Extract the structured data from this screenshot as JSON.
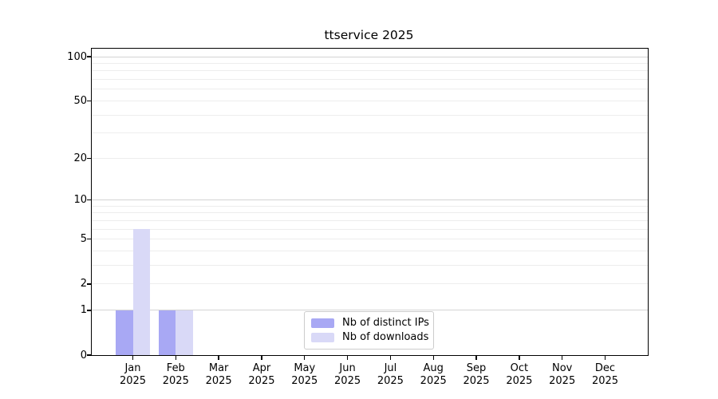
{
  "chart_data": {
    "type": "bar",
    "title": "ttservice 2025",
    "categories": [
      "Jan",
      "Feb",
      "Mar",
      "Apr",
      "May",
      "Jun",
      "Jul",
      "Aug",
      "Sep",
      "Oct",
      "Nov",
      "Dec"
    ],
    "x_year_label": "2025",
    "series": [
      {
        "name": "Nb of distinct IPs",
        "color": "#a8a8f4",
        "values": [
          1,
          1,
          0,
          0,
          0,
          0,
          0,
          0,
          0,
          0,
          0,
          0
        ]
      },
      {
        "name": "Nb of downloads",
        "color": "#d9d9f7",
        "values": [
          6,
          1,
          0,
          0,
          0,
          0,
          0,
          0,
          0,
          0,
          0,
          0
        ]
      }
    ],
    "yticks": [
      0,
      1,
      2,
      5,
      10,
      20,
      50,
      100
    ],
    "ylim": [
      0,
      113
    ],
    "y_scale": "log(1+v)",
    "grid": true,
    "gridline_minor_values": [
      2,
      3,
      4,
      5,
      6,
      7,
      8,
      9,
      20,
      30,
      40,
      50,
      60,
      70,
      80,
      90
    ],
    "gridline_major_values": [
      1,
      10,
      100
    ],
    "legend_position": "bottom-center",
    "colors": {
      "grid_minor": "#ededed",
      "grid_major": "#d4d4d4",
      "axis": "#000000",
      "legend_border": "#cccccc",
      "background": "#ffffff"
    }
  }
}
